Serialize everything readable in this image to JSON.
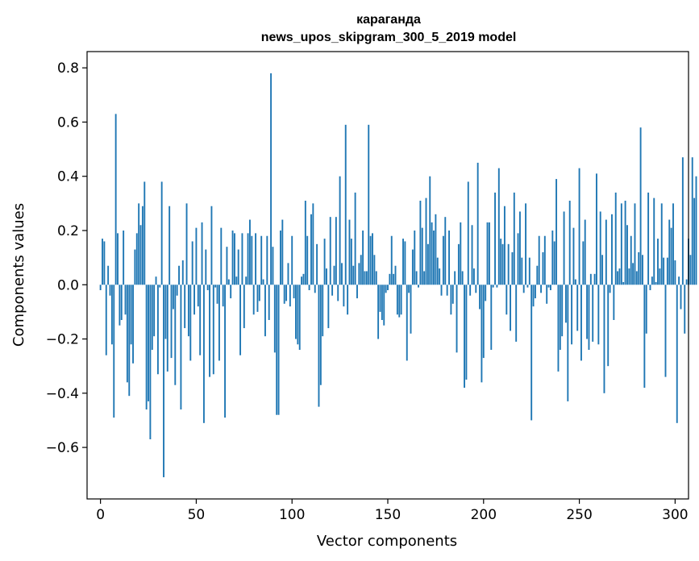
{
  "chart_data": {
    "type": "bar",
    "title": "караганда",
    "subtitle": "news_upos_skipgram_300_5_2019 model",
    "xlabel": "Vector components",
    "ylabel": "Components values",
    "xlim": [
      -7,
      307
    ],
    "ylim": [
      -0.79,
      0.86
    ],
    "x_ticks": [
      0,
      50,
      100,
      150,
      200,
      250,
      300
    ],
    "x_tick_labels": [
      "0",
      "50",
      "100",
      "150",
      "200",
      "250",
      "300"
    ],
    "y_ticks": [
      -0.6,
      -0.4,
      -0.2,
      0.0,
      0.2,
      0.4,
      0.6,
      0.8
    ],
    "y_tick_labels": [
      "−0.6",
      "−0.4",
      "−0.2",
      "0.0",
      "0.2",
      "0.4",
      "0.6",
      "0.8"
    ],
    "bar_color": "#1f77b4",
    "grid": false,
    "values": [
      -0.02,
      0.17,
      0.16,
      -0.26,
      0.07,
      -0.04,
      -0.22,
      -0.49,
      0.63,
      0.19,
      -0.15,
      -0.13,
      0.2,
      -0.11,
      -0.36,
      -0.41,
      -0.22,
      -0.29,
      0.13,
      0.19,
      0.3,
      0.22,
      0.29,
      0.38,
      -0.46,
      -0.43,
      -0.57,
      -0.24,
      -0.19,
      0.03,
      -0.33,
      -0.01,
      0.38,
      -0.71,
      -0.2,
      -0.32,
      0.29,
      -0.27,
      -0.09,
      -0.37,
      -0.04,
      0.07,
      -0.46,
      0.09,
      -0.16,
      0.3,
      -0.19,
      -0.28,
      0.16,
      -0.11,
      0.21,
      -0.08,
      -0.26,
      0.23,
      -0.51,
      0.13,
      -0.02,
      -0.34,
      0.29,
      -0.33,
      -0.01,
      -0.07,
      -0.28,
      0.21,
      -0.08,
      -0.49,
      0.14,
      0.02,
      -0.05,
      0.2,
      0.19,
      0.03,
      0.13,
      -0.26,
      0.19,
      -0.16,
      0.03,
      0.19,
      0.24,
      0.18,
      -0.11,
      0.19,
      -0.1,
      -0.06,
      0.18,
      0.02,
      -0.19,
      0.18,
      -0.13,
      0.78,
      0.14,
      -0.25,
      -0.48,
      -0.48,
      0.2,
      0.24,
      -0.07,
      -0.06,
      0.08,
      -0.08,
      0.18,
      -0.05,
      -0.2,
      -0.22,
      -0.24,
      0.03,
      0.04,
      0.31,
      0.18,
      -0.02,
      0.26,
      0.3,
      -0.03,
      0.15,
      -0.45,
      -0.37,
      -0.19,
      0.17,
      0.06,
      -0.16,
      0.25,
      -0.04,
      0.07,
      0.25,
      -0.06,
      0.4,
      0.08,
      -0.08,
      0.59,
      -0.11,
      0.24,
      0.17,
      0.07,
      0.34,
      -0.05,
      0.08,
      0.11,
      0.2,
      0.05,
      0.05,
      0.59,
      0.18,
      0.19,
      0.11,
      0.05,
      -0.2,
      -0.1,
      -0.13,
      -0.15,
      -0.03,
      -0.02,
      0.04,
      0.18,
      0.04,
      0.07,
      -0.11,
      -0.12,
      -0.11,
      0.17,
      0.16,
      -0.28,
      -0.03,
      -0.18,
      0.13,
      0.2,
      0.05,
      -0.01,
      0.31,
      0.21,
      0.05,
      0.32,
      0.15,
      0.4,
      0.23,
      0.2,
      0.26,
      0.1,
      0.06,
      -0.04,
      0.18,
      0.25,
      -0.04,
      0.2,
      -0.11,
      -0.07,
      0.05,
      -0.25,
      0.15,
      0.23,
      0.05,
      -0.38,
      -0.35,
      0.38,
      -0.04,
      0.22,
      0.06,
      -0.03,
      0.45,
      -0.09,
      -0.36,
      -0.27,
      -0.06,
      0.23,
      0.23,
      -0.24,
      -0.01,
      0.34,
      -0.01,
      0.43,
      0.17,
      0.15,
      0.29,
      -0.11,
      0.15,
      -0.17,
      0.12,
      0.34,
      -0.21,
      0.19,
      0.27,
      0.1,
      -0.03,
      0.3,
      -0.01,
      0.1,
      -0.5,
      -0.08,
      -0.05,
      0.07,
      0.18,
      -0.03,
      0.12,
      0.18,
      -0.07,
      -0.01,
      -0.02,
      0.2,
      0.16,
      0.39,
      -0.32,
      -0.24,
      -0.19,
      0.27,
      -0.14,
      -0.43,
      0.31,
      -0.22,
      0.21,
      0.02,
      -0.17,
      0.43,
      -0.28,
      0.16,
      0.24,
      -0.2,
      -0.24,
      0.04,
      -0.21,
      0.04,
      0.41,
      -0.22,
      0.27,
      0.11,
      -0.4,
      0.24,
      -0.3,
      -0.03,
      0.26,
      -0.13,
      0.34,
      0.05,
      0.06,
      0.3,
      0.01,
      0.31,
      0.22,
      0.06,
      0.18,
      0.08,
      0.3,
      0.05,
      0.12,
      0.58,
      0.11,
      -0.38,
      -0.18,
      0.34,
      -0.02,
      0.03,
      0.32,
      0.01,
      0.17,
      0.06,
      0.3,
      0.1,
      -0.34,
      0.1,
      0.24,
      0.21,
      0.3,
      0.09,
      -0.51,
      0.03,
      -0.09,
      0.47,
      -0.18,
      0.02,
      0.17,
      0.11,
      0.47,
      0.32,
      0.4
    ]
  }
}
